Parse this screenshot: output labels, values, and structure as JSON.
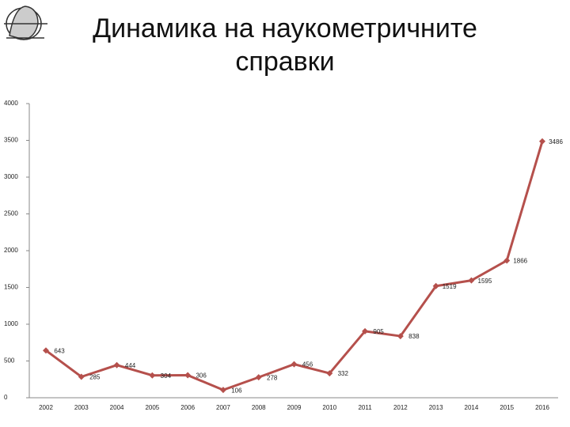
{
  "chart_data": {
    "type": "line",
    "title": [
      "Динамика на наукометричните",
      "справки"
    ],
    "categories": [
      "2002",
      "2003",
      "2004",
      "2005",
      "2006",
      "2007",
      "2008",
      "2009",
      "2010",
      "2011",
      "2012",
      "2013",
      "2014",
      "2015",
      "2016"
    ],
    "series": [
      {
        "color": "#b5504c",
        "values": [
          643,
          285,
          444,
          304,
          306,
          106,
          278,
          456,
          332,
          905,
          838,
          1519,
          1595,
          1866,
          3486
        ]
      }
    ],
    "ylim": [
      0,
      4000
    ],
    "yticks": [
      0,
      500,
      1000,
      1500,
      2000,
      2500,
      3000,
      3500,
      4000
    ],
    "grid": false
  }
}
